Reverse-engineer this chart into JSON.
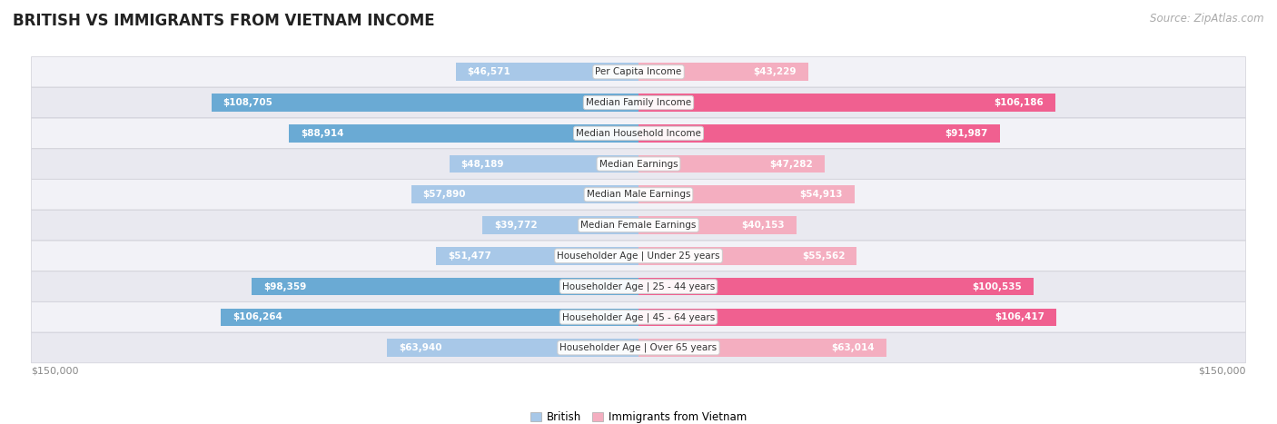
{
  "title": "BRITISH VS IMMIGRANTS FROM VIETNAM INCOME",
  "source": "Source: ZipAtlas.com",
  "categories": [
    "Per Capita Income",
    "Median Family Income",
    "Median Household Income",
    "Median Earnings",
    "Median Male Earnings",
    "Median Female Earnings",
    "Householder Age | Under 25 years",
    "Householder Age | 25 - 44 years",
    "Householder Age | 45 - 64 years",
    "Householder Age | Over 65 years"
  ],
  "british_values": [
    46571,
    108705,
    88914,
    48189,
    57890,
    39772,
    51477,
    98359,
    106264,
    63940
  ],
  "vietnam_values": [
    43229,
    106186,
    91987,
    47282,
    54913,
    40153,
    55562,
    100535,
    106417,
    63014
  ],
  "british_labels": [
    "$46,571",
    "$108,705",
    "$88,914",
    "$48,189",
    "$57,890",
    "$39,772",
    "$51,477",
    "$98,359",
    "$106,264",
    "$63,940"
  ],
  "vietnam_labels": [
    "$43,229",
    "$106,186",
    "$91,987",
    "$47,282",
    "$54,913",
    "$40,153",
    "$55,562",
    "$100,535",
    "$106,417",
    "$63,014"
  ],
  "max_value": 150000,
  "british_color_light": "#a8c8e8",
  "british_color_dark": "#6aaad4",
  "vietnam_color_light": "#f4aec0",
  "vietnam_color_dark": "#f06090",
  "row_bg_light": "#f0f0f5",
  "row_bg_dark": "#e8e8f0",
  "legend_british": "British",
  "legend_vietnam": "Immigrants from Vietnam",
  "x_label_left": "$150,000",
  "x_label_right": "$150,000",
  "title_fontsize": 12,
  "source_fontsize": 8.5,
  "bar_height": 0.58,
  "threshold_inside": 25000,
  "cat_label_fontsize": 7.5,
  "value_fontsize": 7.5
}
